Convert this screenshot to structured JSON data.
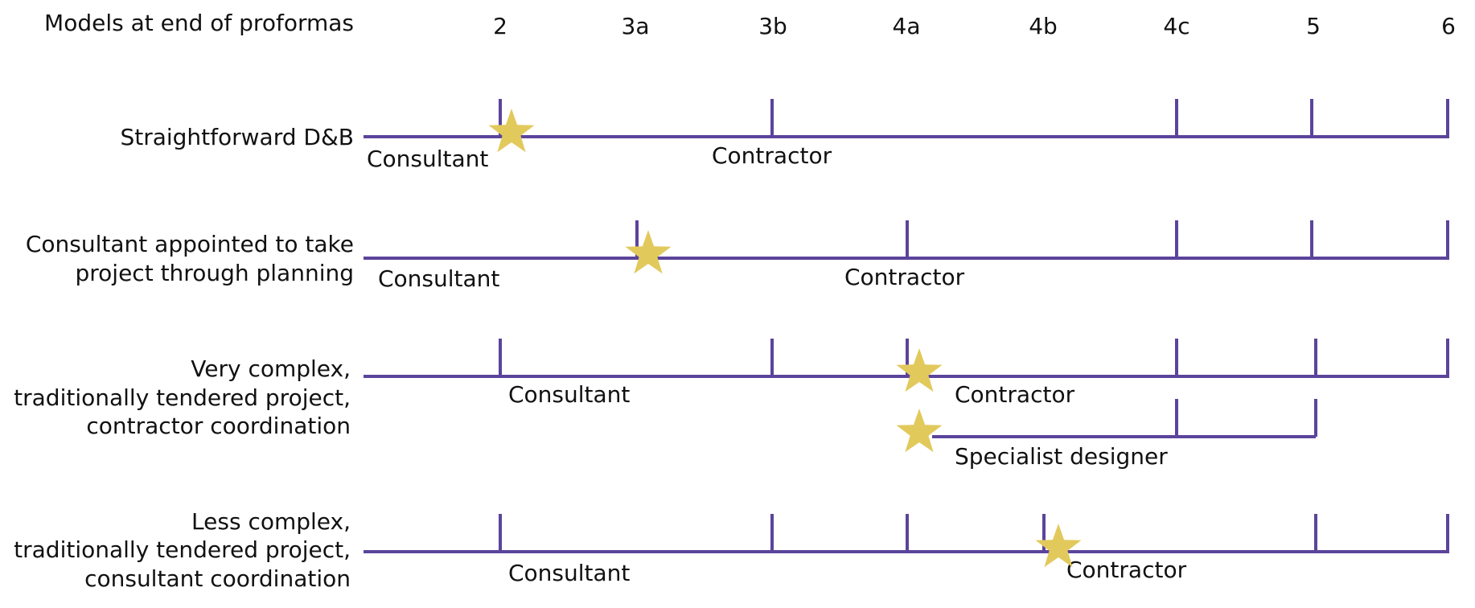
{
  "header": {
    "title": "Models at end of proformas",
    "stages": [
      "2",
      "3a",
      "3b",
      "4a",
      "4b",
      "4c",
      "5",
      "6"
    ]
  },
  "colors": {
    "line": "#5b449b",
    "star": "#e2c95c",
    "text": "#111111"
  },
  "rows": [
    {
      "label_lines": [
        "Straightforward D&B"
      ],
      "segments": [
        {
          "label": "Consultant"
        },
        {
          "label": "Contractor"
        }
      ]
    },
    {
      "label_lines": [
        "Consultant appointed to take",
        "project through planning"
      ],
      "segments": [
        {
          "label": "Consultant"
        },
        {
          "label": "Contractor"
        }
      ]
    },
    {
      "label_lines": [
        "Very complex,",
        "traditionally tendered project,",
        "contractor coordination"
      ],
      "segments": [
        {
          "label": "Consultant"
        },
        {
          "label": "Contractor"
        },
        {
          "label": "Specialist designer"
        }
      ]
    },
    {
      "label_lines": [
        "Less complex,",
        "traditionally tendered project,",
        "consultant coordination"
      ],
      "segments": [
        {
          "label": "Consultant"
        },
        {
          "label": "Contractor"
        }
      ]
    }
  ]
}
